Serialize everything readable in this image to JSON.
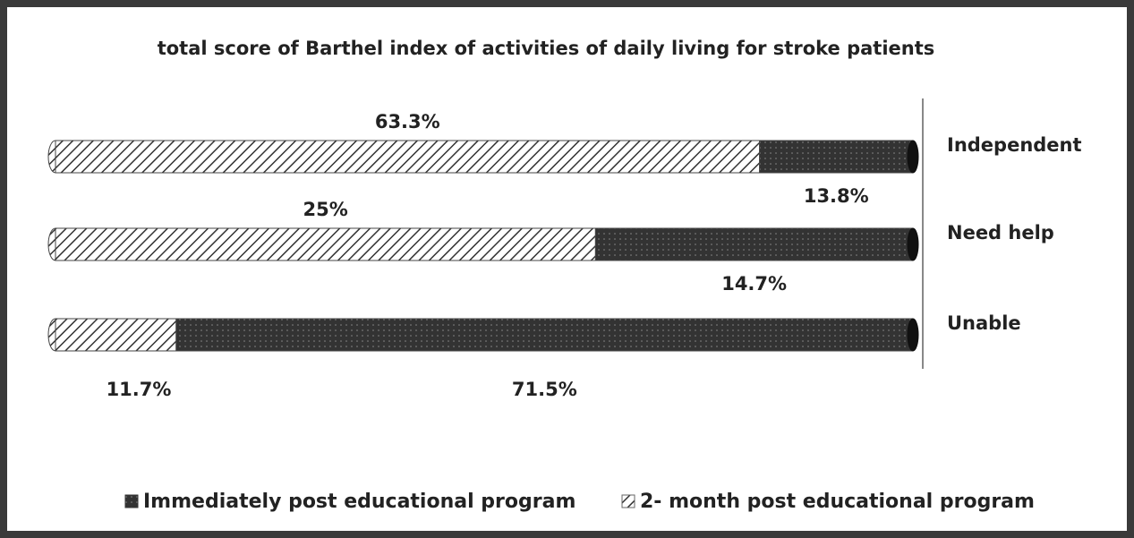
{
  "chart_data": {
    "type": "bar",
    "orientation": "horizontal",
    "stacked": "percent",
    "x_reversed": true,
    "title": "total score of Barthel index  of activities of daily living for stroke patients",
    "categories": [
      "Independent",
      "Need help",
      "Unable"
    ],
    "series": [
      {
        "name": "Immediately post educational program",
        "color": "#333333",
        "pattern": "dots",
        "values": [
          13.8,
          14.7,
          71.5
        ],
        "value_labels": [
          "13.8%",
          "14.7%",
          "71.5%"
        ]
      },
      {
        "name": "2- month post educational program",
        "color": "#ffffff",
        "pattern": "hatch",
        "values": [
          63.3,
          25,
          11.7
        ],
        "value_labels": [
          "63.3%",
          "25%",
          "11.7%"
        ]
      }
    ],
    "legend": "bottom"
  }
}
